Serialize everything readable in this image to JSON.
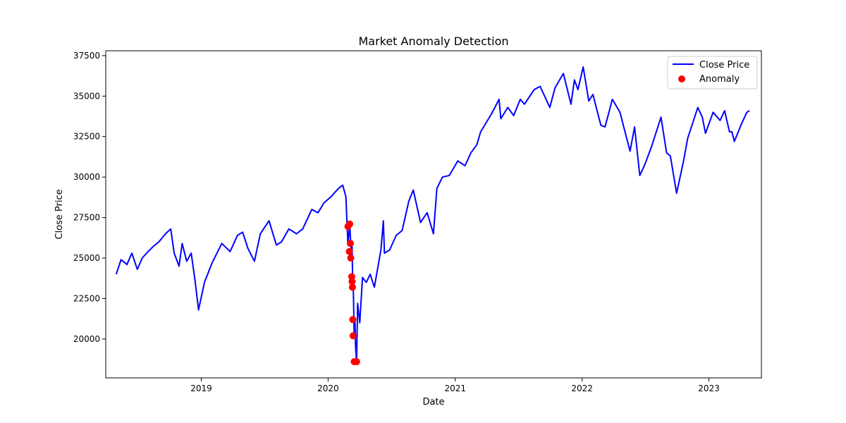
{
  "chart_data": {
    "type": "line",
    "title": "Market Anomaly Detection",
    "xlabel": "Date",
    "ylabel": "Close Price",
    "xlim": [
      "2018-04-01",
      "2023-06-01"
    ],
    "ylim": [
      17600,
      37800
    ],
    "x_ticks": [
      "2019-01-01",
      "2020-01-01",
      "2021-01-01",
      "2022-01-01",
      "2023-01-01"
    ],
    "x_tick_labels": [
      "2019",
      "2020",
      "2021",
      "2022",
      "2023"
    ],
    "y_ticks": [
      20000,
      22500,
      25000,
      27500,
      30000,
      32500,
      35000,
      37500
    ],
    "y_tick_labels": [
      "20000",
      "22500",
      "25000",
      "27500",
      "30000",
      "32500",
      "35000",
      "37500"
    ],
    "grid": false,
    "legend_position": "top-right",
    "series": [
      {
        "name": "Close Price",
        "kind": "line",
        "color": "#0000ff",
        "x": [
          "2018-05-01",
          "2018-05-15",
          "2018-06-01",
          "2018-06-15",
          "2018-07-01",
          "2018-07-15",
          "2018-08-01",
          "2018-08-15",
          "2018-09-01",
          "2018-09-20",
          "2018-10-05",
          "2018-10-15",
          "2018-10-29",
          "2018-11-07",
          "2018-11-20",
          "2018-12-03",
          "2018-12-14",
          "2018-12-24",
          "2019-01-10",
          "2019-02-01",
          "2019-03-01",
          "2019-03-25",
          "2019-04-15",
          "2019-04-30",
          "2019-05-15",
          "2019-06-03",
          "2019-06-20",
          "2019-07-15",
          "2019-08-05",
          "2019-08-20",
          "2019-09-10",
          "2019-10-02",
          "2019-10-20",
          "2019-11-15",
          "2019-12-03",
          "2019-12-20",
          "2020-01-10",
          "2020-01-31",
          "2020-02-12",
          "2020-02-21",
          "2020-02-27",
          "2020-03-03",
          "2020-03-06",
          "2020-03-09",
          "2020-03-10",
          "2020-03-12",
          "2020-03-13",
          "2020-03-16",
          "2020-03-18",
          "2020-03-20",
          "2020-03-23",
          "2020-03-26",
          "2020-04-01",
          "2020-04-09",
          "2020-04-20",
          "2020-05-01",
          "2020-05-13",
          "2020-06-01",
          "2020-06-08",
          "2020-06-11",
          "2020-06-26",
          "2020-07-15",
          "2020-08-01",
          "2020-08-20",
          "2020-09-02",
          "2020-09-23",
          "2020-10-12",
          "2020-10-30",
          "2020-11-09",
          "2020-11-25",
          "2020-12-15",
          "2021-01-08",
          "2021-01-29",
          "2021-02-15",
          "2021-03-04",
          "2021-03-15",
          "2021-04-15",
          "2021-05-07",
          "2021-05-12",
          "2021-06-01",
          "2021-06-18",
          "2021-07-07",
          "2021-07-19",
          "2021-08-16",
          "2021-09-02",
          "2021-09-30",
          "2021-10-15",
          "2021-11-08",
          "2021-11-30",
          "2021-12-10",
          "2021-12-20",
          "2022-01-04",
          "2022-01-20",
          "2022-02-01",
          "2022-02-24",
          "2022-03-08",
          "2022-03-29",
          "2022-04-20",
          "2022-05-02",
          "2022-05-19",
          "2022-06-01",
          "2022-06-16",
          "2022-07-01",
          "2022-07-20",
          "2022-08-16",
          "2022-09-01",
          "2022-09-12",
          "2022-09-30",
          "2022-10-20",
          "2022-11-01",
          "2022-11-30",
          "2022-12-13",
          "2022-12-22",
          "2023-01-13",
          "2023-02-02",
          "2023-02-15",
          "2023-03-01",
          "2023-03-08",
          "2023-03-15",
          "2023-04-05",
          "2023-04-20",
          "2023-04-28"
        ],
        "y": [
          24000,
          24900,
          24600,
          25300,
          24300,
          25000,
          25400,
          25700,
          26000,
          26500,
          26800,
          25300,
          24500,
          25900,
          24800,
          25300,
          23600,
          21800,
          23500,
          24700,
          25900,
          25400,
          26400,
          26600,
          25600,
          24800,
          26500,
          27300,
          25800,
          26000,
          26800,
          26500,
          26800,
          28000,
          27800,
          28400,
          28800,
          29300,
          29500,
          28800,
          25800,
          27100,
          25900,
          25000,
          25700,
          23200,
          23800,
          20200,
          21200,
          19500,
          18600,
          22200,
          21000,
          23800,
          23500,
          24000,
          23200,
          25500,
          27300,
          25300,
          25500,
          26400,
          26700,
          28500,
          29200,
          27200,
          27800,
          26500,
          29300,
          30000,
          30100,
          31000,
          30700,
          31500,
          32000,
          32800,
          33900,
          34800,
          33600,
          34300,
          33800,
          34800,
          34500,
          35400,
          35600,
          34300,
          35500,
          36400,
          34500,
          36000,
          35400,
          36800,
          34700,
          35100,
          33200,
          33100,
          34800,
          34000,
          33000,
          31600,
          33100,
          30100,
          30800,
          31900,
          33700,
          31500,
          31300,
          29000,
          31000,
          32400,
          34300,
          33700,
          32700,
          34000,
          33500,
          34100,
          32800,
          32800,
          32200,
          33300,
          34000,
          34100
        ]
      },
      {
        "name": "Anomaly",
        "kind": "scatter",
        "color": "#ff0000",
        "x": [
          "2020-02-27",
          "2020-03-02",
          "2020-03-03",
          "2020-03-05",
          "2020-03-06",
          "2020-03-09",
          "2020-03-10",
          "2020-03-11",
          "2020-03-12",
          "2020-03-13",
          "2020-03-16",
          "2020-03-23"
        ],
        "y": [
          26950,
          25400,
          27100,
          25900,
          25000,
          23850,
          23550,
          23200,
          21200,
          20200,
          18600,
          18600
        ]
      }
    ]
  }
}
